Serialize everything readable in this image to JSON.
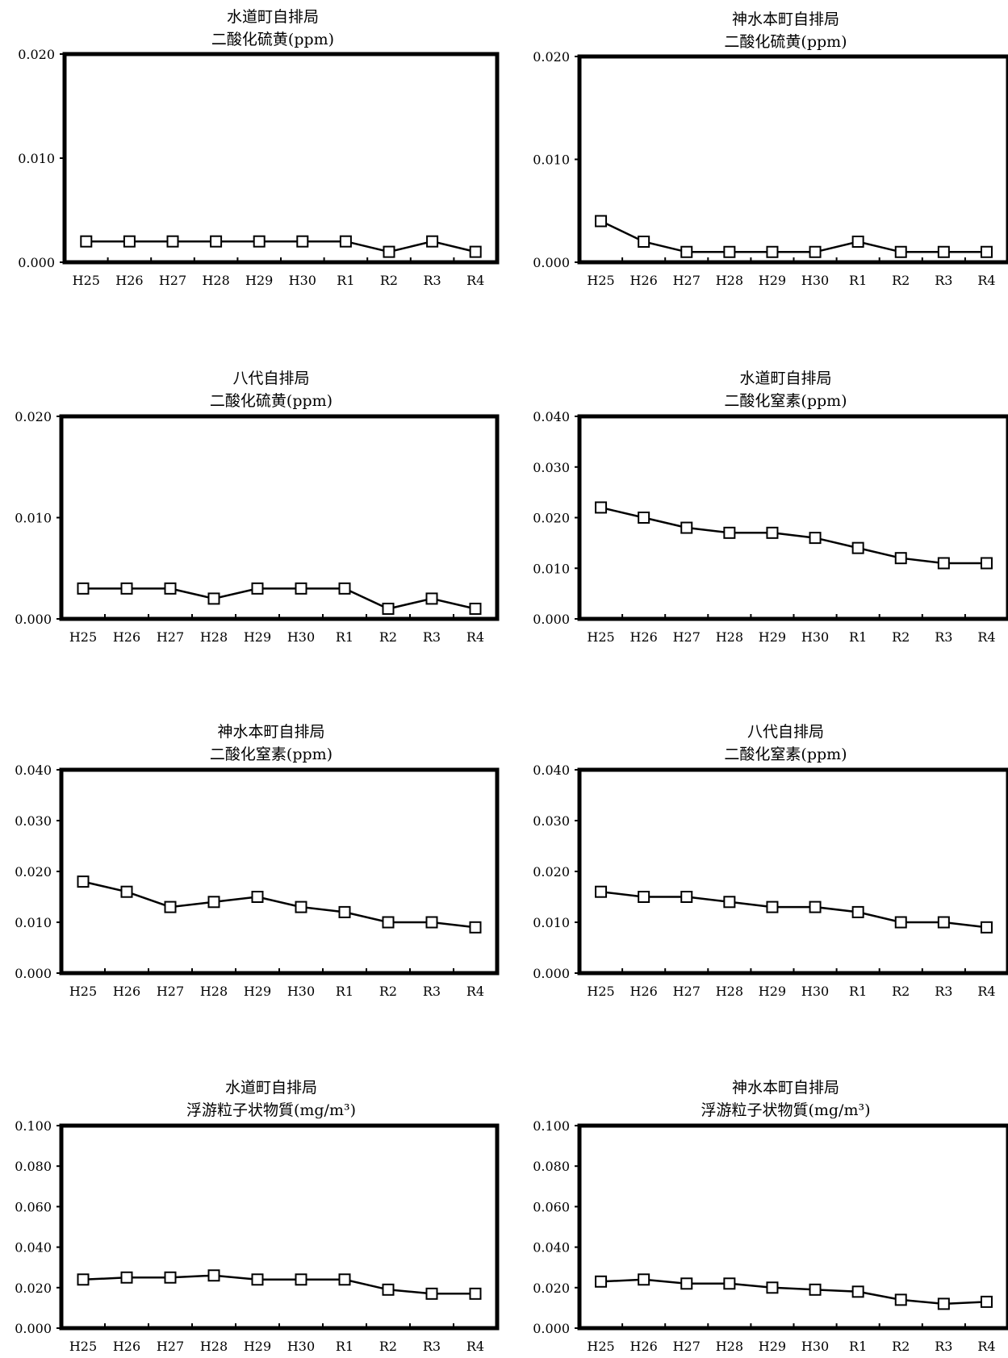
{
  "colors": {
    "line": "#000000",
    "marker_fill": "#ffffff",
    "frame": "#000000",
    "background": "#ffffff"
  },
  "chart_data": [
    {
      "type": "line",
      "title": "水道町自排局",
      "subtitle": "二酸化硫黄(ppm)",
      "categories": [
        "H25",
        "H26",
        "H27",
        "H28",
        "H29",
        "H30",
        "R1",
        "R2",
        "R3",
        "R4"
      ],
      "values": [
        0.002,
        0.002,
        0.002,
        0.002,
        0.002,
        0.002,
        0.002,
        0.001,
        0.002,
        0.001
      ],
      "ylim": [
        0,
        0.02
      ],
      "yticks": [
        "0.000",
        "0.010",
        "0.020"
      ],
      "marker": "square",
      "grid": false,
      "legend": "none"
    },
    {
      "type": "line",
      "title": "神水本町自排局",
      "subtitle": "二酸化硫黄(ppm)",
      "categories": [
        "H25",
        "H26",
        "H27",
        "H28",
        "H29",
        "H30",
        "R1",
        "R2",
        "R3",
        "R4"
      ],
      "values": [
        0.004,
        0.002,
        0.001,
        0.001,
        0.001,
        0.001,
        0.002,
        0.001,
        0.001,
        0.001
      ],
      "ylim": [
        0,
        0.02
      ],
      "yticks": [
        "0.000",
        "0.010",
        "0.020"
      ],
      "marker": "square",
      "grid": false,
      "legend": "none"
    },
    {
      "type": "line",
      "title": "八代自排局",
      "subtitle": "二酸化硫黄(ppm)",
      "categories": [
        "H25",
        "H26",
        "H27",
        "H28",
        "H29",
        "H30",
        "R1",
        "R2",
        "R3",
        "R4"
      ],
      "values": [
        0.003,
        0.003,
        0.003,
        0.002,
        0.003,
        0.003,
        0.003,
        0.001,
        0.002,
        0.001
      ],
      "ylim": [
        0,
        0.02
      ],
      "yticks": [
        "0.000",
        "0.010",
        "0.020"
      ],
      "marker": "square",
      "grid": false,
      "legend": "none"
    },
    {
      "type": "line",
      "title": "水道町自排局",
      "subtitle": "二酸化窒素(ppm)",
      "categories": [
        "H25",
        "H26",
        "H27",
        "H28",
        "H29",
        "H30",
        "R1",
        "R2",
        "R3",
        "R4"
      ],
      "values": [
        0.022,
        0.02,
        0.018,
        0.017,
        0.017,
        0.016,
        0.014,
        0.012,
        0.011,
        0.011
      ],
      "ylim": [
        0,
        0.04
      ],
      "yticks": [
        "0.000",
        "0.010",
        "0.020",
        "0.030",
        "0.040"
      ],
      "marker": "square",
      "grid": false,
      "legend": "none"
    },
    {
      "type": "line",
      "title": "神水本町自排局",
      "subtitle": "二酸化窒素(ppm)",
      "categories": [
        "H25",
        "H26",
        "H27",
        "H28",
        "H29",
        "H30",
        "R1",
        "R2",
        "R3",
        "R4"
      ],
      "values": [
        0.018,
        0.016,
        0.013,
        0.014,
        0.015,
        0.013,
        0.012,
        0.01,
        0.01,
        0.009
      ],
      "ylim": [
        0,
        0.04
      ],
      "yticks": [
        "0.000",
        "0.010",
        "0.020",
        "0.030",
        "0.040"
      ],
      "marker": "square",
      "grid": false,
      "legend": "none"
    },
    {
      "type": "line",
      "title": "八代自排局",
      "subtitle": "二酸化窒素(ppm)",
      "categories": [
        "H25",
        "H26",
        "H27",
        "H28",
        "H29",
        "H30",
        "R1",
        "R2",
        "R3",
        "R4"
      ],
      "values": [
        0.016,
        0.015,
        0.015,
        0.014,
        0.013,
        0.013,
        0.012,
        0.01,
        0.01,
        0.009
      ],
      "ylim": [
        0,
        0.04
      ],
      "yticks": [
        "0.000",
        "0.010",
        "0.020",
        "0.030",
        "0.040"
      ],
      "marker": "square",
      "grid": false,
      "legend": "none"
    },
    {
      "type": "line",
      "title": "水道町自排局",
      "subtitle": "浮游粒子状物質(mg/m³)",
      "categories": [
        "H25",
        "H26",
        "H27",
        "H28",
        "H29",
        "H30",
        "R1",
        "R2",
        "R3",
        "R4"
      ],
      "values": [
        0.024,
        0.025,
        0.025,
        0.026,
        0.024,
        0.024,
        0.024,
        0.019,
        0.017,
        0.017
      ],
      "ylim": [
        0,
        0.1
      ],
      "yticks": [
        "0.000",
        "0.020",
        "0.040",
        "0.060",
        "0.080",
        "0.100"
      ],
      "marker": "square",
      "grid": false,
      "legend": "none"
    },
    {
      "type": "line",
      "title": "神水本町自排局",
      "subtitle": "浮游粒子状物質(mg/m³)",
      "categories": [
        "H25",
        "H26",
        "H27",
        "H28",
        "H29",
        "H30",
        "R1",
        "R2",
        "R3",
        "R4"
      ],
      "values": [
        0.023,
        0.024,
        0.022,
        0.022,
        0.02,
        0.019,
        0.018,
        0.014,
        0.012,
        0.013
      ],
      "ylim": [
        0,
        0.1
      ],
      "yticks": [
        "0.000",
        "0.020",
        "0.040",
        "0.060",
        "0.080",
        "0.100"
      ],
      "marker": "square",
      "grid": false,
      "legend": "none"
    }
  ]
}
